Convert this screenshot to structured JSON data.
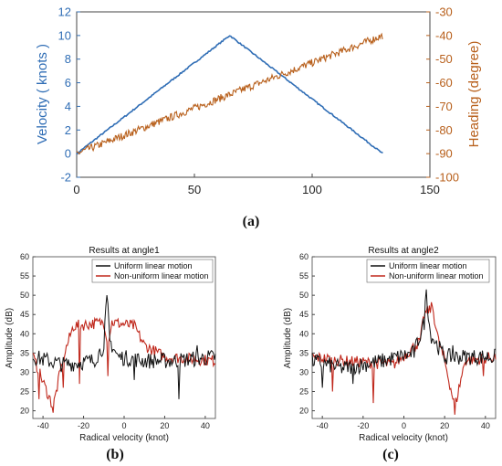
{
  "chart_data": [
    {
      "type": "line",
      "panel_label": "(a)",
      "xlim": [
        0,
        150
      ],
      "xticks": [
        0,
        50,
        100,
        150
      ],
      "ylabel_left": "Velocity ( knots )",
      "ylim_left": [
        -2,
        12
      ],
      "yticks_left": [
        -2,
        0,
        2,
        4,
        6,
        8,
        10,
        12
      ],
      "ylabel_right": "Heading (degree)",
      "ylim_right": [
        -100,
        -30
      ],
      "yticks_right": [
        -100,
        -90,
        -80,
        -70,
        -60,
        -50,
        -40,
        -30
      ],
      "colors": {
        "velocity": "#2f6db5",
        "heading": "#b8601c"
      },
      "series": [
        {
          "axis": "left",
          "x": [
            0,
            65,
            130
          ],
          "y": [
            0,
            10,
            0
          ]
        },
        {
          "axis": "right",
          "x": [
            0,
            130
          ],
          "y": [
            -90,
            -40
          ]
        }
      ]
    },
    {
      "type": "line",
      "panel_label": "(b)",
      "title": "Results at angle1",
      "xlabel": "Radical velocity (knot)",
      "ylabel": "Amplitude (dB)",
      "xlim": [
        -45,
        45
      ],
      "xticks": [
        -40,
        -20,
        0,
        20,
        40
      ],
      "ylim": [
        18,
        60
      ],
      "yticks": [
        20,
        25,
        30,
        35,
        40,
        45,
        50,
        55,
        60
      ],
      "legend": [
        "Uniform linear motion",
        "Non-uniform linear motion"
      ],
      "legend_position": "top-right",
      "colors": [
        "#111111",
        "#c0281c"
      ],
      "series": [
        {
          "name": "Uniform linear motion",
          "x": [
            -45,
            -30,
            -15,
            -10,
            -8.5,
            -7,
            -3,
            10,
            25,
            45
          ],
          "y": [
            34,
            32,
            33,
            37,
            50,
            38,
            34,
            33,
            33,
            34
          ]
        },
        {
          "name": "Non-uniform linear motion",
          "x": [
            -45,
            -35,
            -30,
            -25,
            -10,
            -8,
            -6,
            5,
            10,
            20,
            45
          ],
          "y": [
            34,
            21,
            34,
            42,
            43,
            38,
            43,
            42,
            37,
            34,
            33
          ]
        }
      ]
    },
    {
      "type": "line",
      "panel_label": "(c)",
      "title": "Results at angle2",
      "xlabel": "Radical velocity (knot)",
      "ylabel": "Amplitude (dB)",
      "xlim": [
        -45,
        45
      ],
      "xticks": [
        -40,
        -20,
        0,
        20,
        40
      ],
      "ylim": [
        18,
        60
      ],
      "yticks": [
        20,
        25,
        30,
        35,
        40,
        45,
        50,
        55,
        60
      ],
      "legend": [
        "Uniform linear motion",
        "Non-uniform linear motion"
      ],
      "legend_position": "top-right",
      "colors": [
        "#111111",
        "#c0281c"
      ],
      "series": [
        {
          "name": "Uniform linear motion",
          "x": [
            -45,
            -30,
            -10,
            5,
            10,
            11,
            13,
            20,
            45
          ],
          "y": [
            33,
            31,
            33,
            35,
            43,
            51,
            40,
            34,
            34
          ]
        },
        {
          "name": "Non-uniform linear motion",
          "x": [
            -45,
            -30,
            -5,
            8,
            10,
            14,
            17,
            20,
            25,
            30,
            45
          ],
          "y": [
            34,
            33,
            32,
            38,
            45,
            47,
            38,
            33,
            21,
            33,
            34
          ]
        }
      ]
    }
  ]
}
